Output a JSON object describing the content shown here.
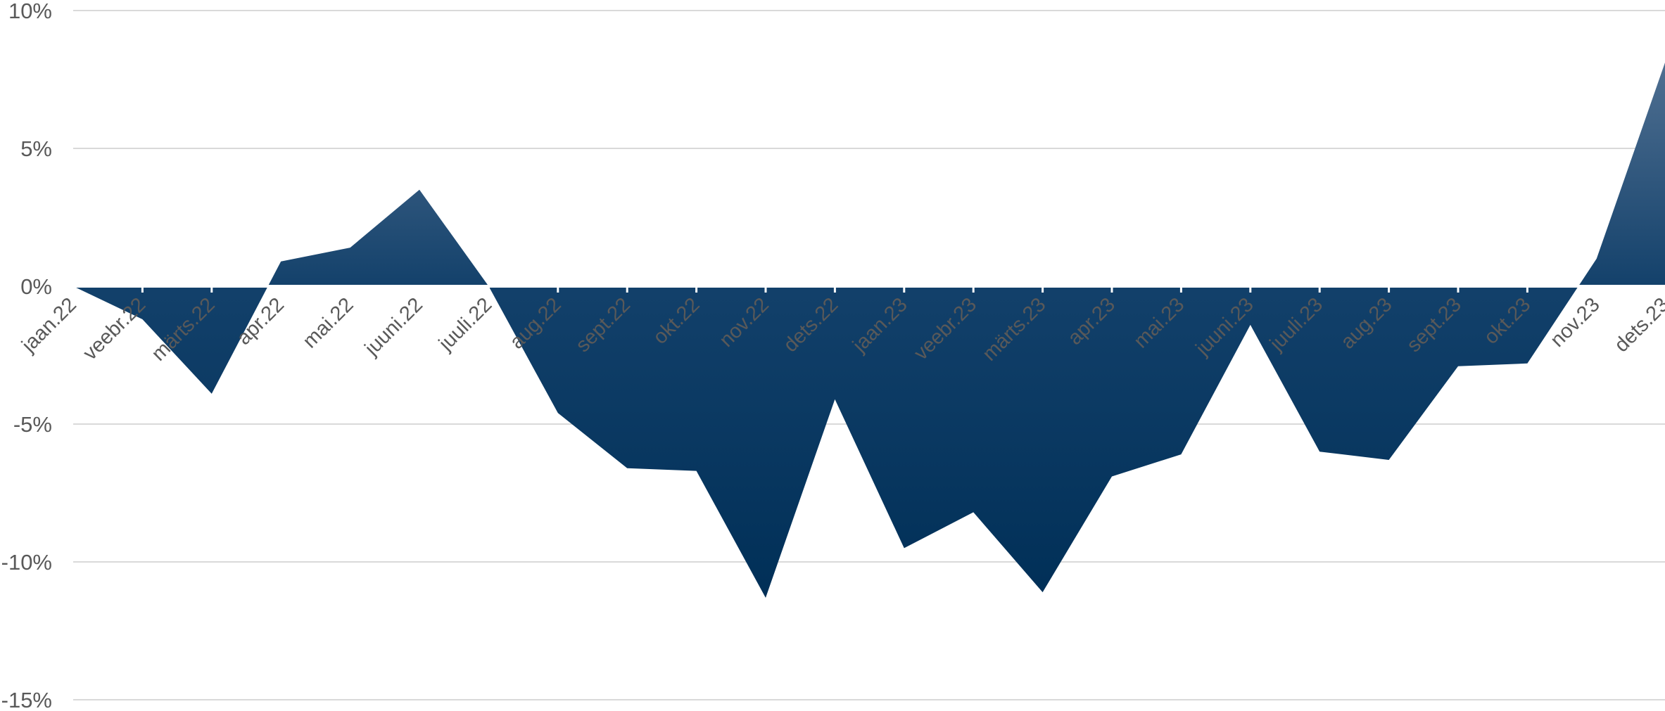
{
  "chart_data": {
    "type": "area",
    "title": "",
    "xlabel": "",
    "ylabel": "",
    "ylim": [
      -15,
      10
    ],
    "y_ticks": [
      10,
      5,
      0,
      -5,
      -10,
      -15
    ],
    "y_tick_labels": [
      "10%",
      "5%",
      "0%",
      "-5%",
      "-10%",
      "-15%"
    ],
    "grid": true,
    "legend": "none",
    "categories": [
      "jaan.22",
      "veebr.22",
      "märts.22",
      "apr.22",
      "mai.22",
      "juuni.22",
      "juuli.22",
      "aug.22",
      "sept.22",
      "okt.22",
      "nov.22",
      "dets.22",
      "jaan.23",
      "veebr.23",
      "märts.23",
      "apr.23",
      "mai.23",
      "juuni.23",
      "juuli.23",
      "aug.23",
      "sept.23",
      "okt.23",
      "nov.23",
      "dets.23"
    ],
    "series": [
      {
        "values": [
          0,
          -1.2,
          -3.9,
          0.9,
          1.4,
          3.5,
          0,
          -4.6,
          -6.6,
          -6.7,
          -11.3,
          -4.1,
          -9.5,
          -8.2,
          -11.1,
          -6.9,
          -6.1,
          -1.4,
          -6.0,
          -6.3,
          -2.9,
          -2.8,
          1.0,
          8.2
        ]
      }
    ],
    "colors": {
      "fill_top": "#4f6f91",
      "fill_mid": "#12406a",
      "fill_bottom": "#002f57",
      "axis_text": "#595959",
      "gridline": "#d9d9d9"
    }
  }
}
